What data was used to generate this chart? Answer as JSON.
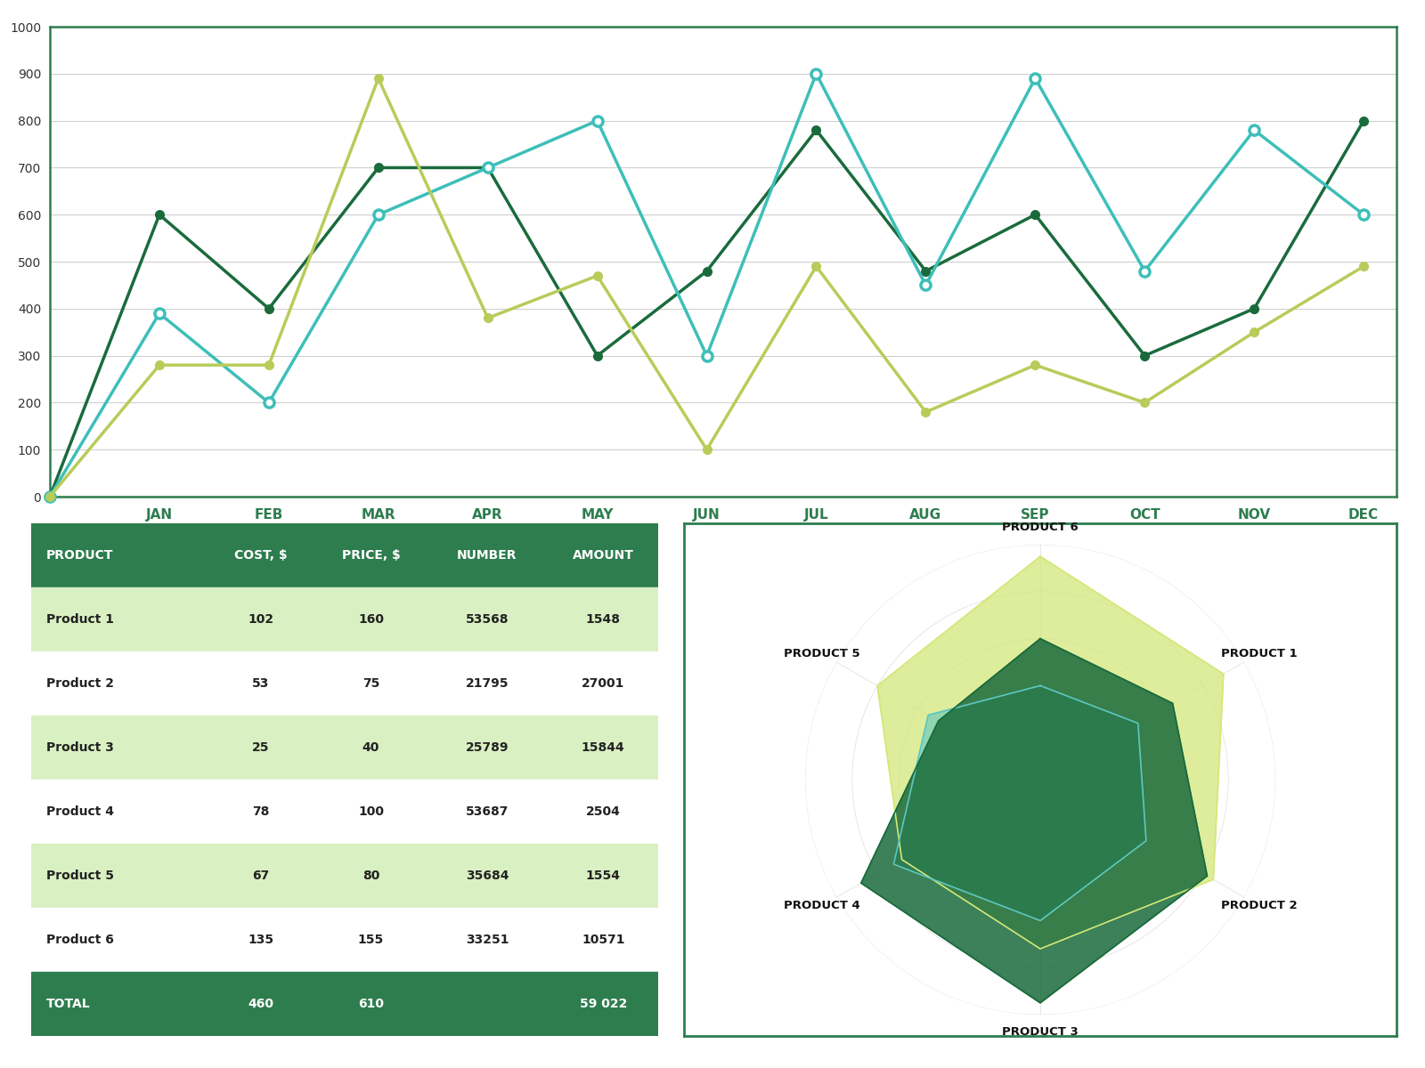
{
  "line_chart": {
    "months": [
      "JAN",
      "FEB",
      "MAR",
      "APR",
      "MAY",
      "JUN",
      "JUL",
      "AUG",
      "SEP",
      "OCT",
      "NOV",
      "DEC"
    ],
    "series1": [
      600,
      400,
      700,
      700,
      300,
      480,
      780,
      480,
      600,
      300,
      400,
      800
    ],
    "series2": [
      390,
      200,
      600,
      700,
      800,
      300,
      900,
      450,
      890,
      480,
      780,
      600
    ],
    "series3": [
      280,
      280,
      890,
      380,
      470,
      100,
      490,
      180,
      280,
      200,
      350,
      490
    ],
    "color1": "#1a6b3c",
    "color2": "#3dbfb8",
    "color3": "#b8cc5a",
    "ylim": [
      0,
      1000
    ],
    "yticks": [
      0,
      100,
      200,
      300,
      400,
      500,
      600,
      700,
      800,
      900,
      1000
    ],
    "border_color": "#2e7d4f"
  },
  "table": {
    "headers": [
      "PRODUCT",
      "COST, $",
      "PRICE, $",
      "NUMBER",
      "AMOUNT"
    ],
    "rows": [
      [
        "Product 1",
        "102",
        "160",
        "53568",
        "1548"
      ],
      [
        "Product 2",
        "53",
        "75",
        "21795",
        "27001"
      ],
      [
        "Product 3",
        "25",
        "40",
        "25789",
        "15844"
      ],
      [
        "Product 4",
        "78",
        "100",
        "53687",
        "2504"
      ],
      [
        "Product 5",
        "67",
        "80",
        "35684",
        "1554"
      ],
      [
        "Product 6",
        "135",
        "155",
        "33251",
        "10571"
      ]
    ],
    "total_row": [
      "TOTAL",
      "460",
      "610",
      "",
      "59 022"
    ],
    "header_bg": "#2e7d4f",
    "header_text": "#ffffff",
    "row_alt_bg": "#d9f0c2",
    "row_bg": "#ffffff",
    "total_bg": "#2e7d4f",
    "total_text": "#ffffff",
    "border_color": "#2e7d4f"
  },
  "radar": {
    "labels": [
      "PRODUCT 6",
      "PRODUCT 1",
      "PRODUCT 2",
      "PRODUCT 3",
      "PRODUCT 4",
      "PRODUCT 5"
    ],
    "series_outer": [
      0.95,
      0.9,
      0.85,
      0.72,
      0.68,
      0.8
    ],
    "series_mid": [
      0.6,
      0.65,
      0.82,
      0.95,
      0.88,
      0.5
    ],
    "series_inner": [
      0.4,
      0.48,
      0.52,
      0.6,
      0.72,
      0.55
    ],
    "color_outer": "#d4e87a",
    "color_mid": "#1a6b3c",
    "color_inner": "#5ec8c0",
    "alpha_outer": 0.75,
    "alpha_mid": 0.85,
    "alpha_inner": 0.6,
    "border_color": "#2e7d4f"
  }
}
